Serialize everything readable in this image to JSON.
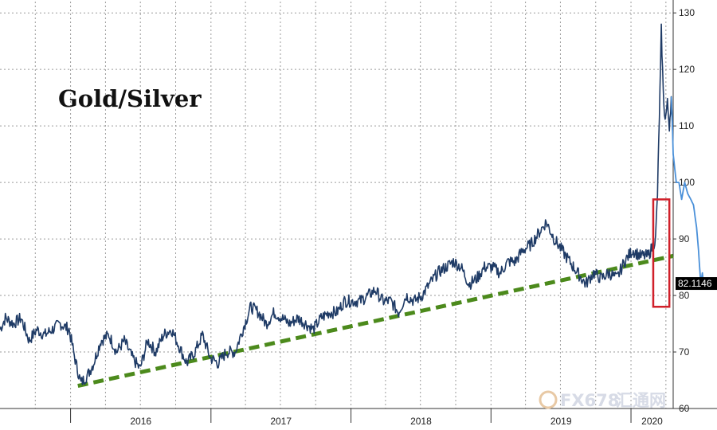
{
  "colors": {
    "series": "#1f3b66",
    "series_recent": "#4a90d9",
    "trend": "#4c8a1c",
    "highlight_box": "#d0202a",
    "label_bg": "#000000",
    "grid": "#9a9a9a"
  },
  "watermark": {
    "text_latin": "FX678",
    "text_cjk": "汇通网"
  },
  "chart_data": {
    "type": "line",
    "title": "Gold/Silver",
    "y_axis": {
      "position": "right",
      "ylim": [
        60,
        132
      ],
      "ticks": [
        60,
        70,
        80,
        90,
        100,
        110,
        120,
        130
      ]
    },
    "x_axis": {
      "range": [
        "2015-07-01",
        "2020-04-20"
      ],
      "labels": [
        "2016",
        "2017",
        "2018",
        "2019",
        "2020"
      ]
    },
    "grid": true,
    "last_value_label": "82.1146",
    "annotations": {
      "trendline": {
        "style": "dashed",
        "x": [
          "2016-01-20",
          "2020-04-20"
        ],
        "y": [
          64,
          87
        ]
      },
      "highlight_box": {
        "x": [
          "2020-02-28",
          "2020-04-10"
        ],
        "y": [
          78,
          97
        ]
      }
    },
    "series": [
      {
        "x": [
          "2015-07-01",
          "2015-07-15",
          "2015-08-05",
          "2015-08-25",
          "2015-09-15",
          "2015-10-05",
          "2015-10-25",
          "2015-11-15",
          "2015-12-05",
          "2015-12-28",
          "2016-01-15",
          "2016-01-28",
          "2016-02-15",
          "2016-03-01",
          "2016-03-20",
          "2016-04-10",
          "2016-04-30",
          "2016-05-20",
          "2016-06-10",
          "2016-06-30",
          "2016-07-20",
          "2016-08-10",
          "2016-08-30",
          "2016-09-20",
          "2016-10-10",
          "2016-10-30",
          "2016-11-20",
          "2016-12-10",
          "2016-12-30",
          "2017-01-20",
          "2017-02-10",
          "2017-03-05",
          "2017-03-25",
          "2017-04-15",
          "2017-05-05",
          "2017-05-25",
          "2017-06-15",
          "2017-07-05",
          "2017-07-25",
          "2017-08-15",
          "2017-09-05",
          "2017-09-25",
          "2017-10-15",
          "2017-11-05",
          "2017-11-25",
          "2017-12-15",
          "2018-01-05",
          "2018-01-25",
          "2018-02-15",
          "2018-03-05",
          "2018-03-25",
          "2018-04-15",
          "2018-05-05",
          "2018-05-25",
          "2018-06-15",
          "2018-07-05",
          "2018-07-25",
          "2018-08-15",
          "2018-09-05",
          "2018-09-25",
          "2018-10-15",
          "2018-11-05",
          "2018-11-25",
          "2018-12-15",
          "2019-01-05",
          "2019-01-25",
          "2019-02-15",
          "2019-03-05",
          "2019-03-25",
          "2019-04-15",
          "2019-05-05",
          "2019-05-25",
          "2019-06-15",
          "2019-07-05",
          "2019-07-25",
          "2019-08-15",
          "2019-09-05",
          "2019-09-25",
          "2019-10-15",
          "2019-11-05",
          "2019-11-25",
          "2019-12-15",
          "2020-01-05",
          "2020-01-25",
          "2020-02-15",
          "2020-02-28",
          "2020-03-05",
          "2020-03-10",
          "2020-03-15",
          "2020-03-18",
          "2020-03-20",
          "2020-03-25",
          "2020-03-30",
          "2020-04-05",
          "2020-04-10",
          "2020-04-15",
          "2020-04-20",
          "2020-04-28",
          "2020-05-05",
          "2020-05-12",
          "2020-05-20",
          "2020-05-28",
          "2020-06-05",
          "2020-06-12",
          "2020-06-20",
          "2020-06-25",
          "2020-07-01",
          "2020-07-05",
          "2020-07-08"
        ],
        "values": [
          74,
          76,
          75,
          76,
          72,
          74,
          73,
          74,
          75,
          74,
          68,
          64.5,
          66,
          68,
          72,
          73,
          70,
          72,
          69,
          67,
          72,
          70,
          73,
          74,
          71,
          68,
          70,
          73,
          69,
          68,
          70,
          70,
          74,
          78,
          77,
          75,
          77,
          76,
          75,
          76,
          75,
          74,
          76,
          77,
          77,
          79,
          79,
          79,
          80,
          81,
          79,
          79,
          77,
          80,
          79,
          80,
          82,
          84,
          85,
          86,
          85,
          82,
          83,
          85,
          85,
          84,
          86,
          86,
          88,
          89,
          91,
          93,
          90,
          88,
          86,
          84,
          82,
          84,
          83,
          84,
          83,
          86,
          88,
          87,
          87,
          89,
          90,
          98,
          112,
          120,
          127,
          116,
          111,
          114,
          110,
          115,
          105,
          100,
          100,
          97,
          100,
          98,
          97,
          96,
          92,
          88,
          82,
          84,
          82.1146
        ],
        "recent_from_index": 96
      }
    ]
  }
}
